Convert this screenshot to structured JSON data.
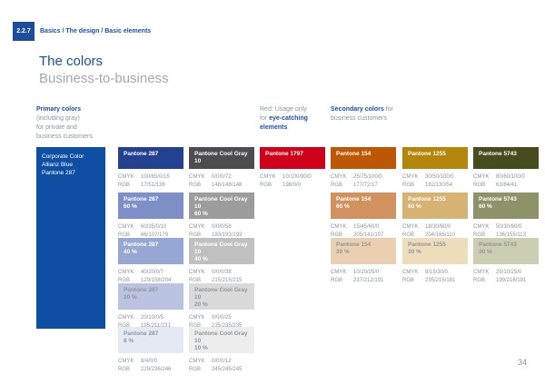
{
  "page": {
    "section_number": "2.2.7",
    "breadcrumb": "Basics / The design / Basic elements",
    "title": "The colors",
    "subtitle": "Business-to-business",
    "page_number": "34"
  },
  "colors": {
    "brand_blue": "#1d4e9c",
    "page_background": "#ffffff"
  },
  "labels": {
    "cmyk": "CMYK",
    "rgb": "RGB"
  },
  "primary_note": {
    "heading": "Primary colors",
    "line2": "(including gray)",
    "line3": "for private and",
    "line4": "business customers"
  },
  "red_note": {
    "line1": "Red: Usage only",
    "line2_prefix": "for ",
    "line2_em": "eye-catching",
    "line3_em": "elements"
  },
  "secondary_note": {
    "em": "Secondary colors",
    "line1_suffix": " for",
    "line2": "business customers"
  },
  "corporate_swatch": {
    "line1": "Corporate Color",
    "line2": "Allianz Blue",
    "line3": "Pantone 287",
    "color": "#0e4fa3"
  },
  "columns": [
    {
      "id": "pantone-287",
      "swatches": [
        {
          "label": "Pantone 287",
          "tint": "",
          "cmyk": "100/65/0/15",
          "rgb": "17/51/136",
          "bg": "#24418f",
          "tone": "light"
        },
        {
          "label": "Pantone 287",
          "tint": "60 %",
          "cmyk": "60/35/0/10",
          "rgb": "66/107/179",
          "bg": "#7d8fc6",
          "tone": "light"
        },
        {
          "label": "Pantone 287",
          "tint": "40 %",
          "cmyk": "40/20/0/7",
          "rgb": "129/158/204",
          "bg": "#95a7d2",
          "tone": "light"
        },
        {
          "label": "Pantone 287",
          "tint": "20 %",
          "cmyk": "20/10/0/5",
          "rgb": "195/211/231",
          "bg": "#bac4e2",
          "tone": "muted"
        },
        {
          "label": "Pantone 287",
          "tint": "8 %",
          "cmyk": "8/4/0/0",
          "rgb": "229/236/246",
          "bg": "#e5e9f4",
          "tone": "muted"
        }
      ]
    },
    {
      "id": "pantone-cool-gray-10",
      "swatches": [
        {
          "label": "Pantone Cool Gray 10",
          "tint": "",
          "cmyk": "0/0/0/72",
          "rgb": "148/148/148",
          "bg": "#4d4d4f",
          "tone": "light"
        },
        {
          "label": "Pantone Cool Gray 10",
          "tint": "60 %",
          "cmyk": "0/0/0/58",
          "rgb": "193/193/193",
          "bg": "#9c9c9c",
          "tone": "light"
        },
        {
          "label": "Pantone Cool Gray 10",
          "tint": "40 %",
          "cmyk": "0/0/0/38",
          "rgb": "215/215/215",
          "bg": "#c0c0c0",
          "tone": "light"
        },
        {
          "label": "Pantone Cool Gray 10",
          "tint": "20 %",
          "cmyk": "0/0/0/25",
          "rgb": "235/235/235",
          "bg": "#dadada",
          "tone": "muted"
        },
        {
          "label": "Pantone Cool Gray 10",
          "tint": "10 %",
          "cmyk": "0/0/0/12",
          "rgb": "245/245/245",
          "bg": "#ededed",
          "tone": "muted"
        }
      ]
    },
    {
      "id": "pantone-1797",
      "swatches": [
        {
          "label": "Pantone 1797",
          "tint": "",
          "cmyk": "10/100/90/0",
          "rgb": "198/0/0",
          "bg": "#cf0019",
          "tone": "light"
        }
      ]
    },
    {
      "id": "pantone-154",
      "swatches": [
        {
          "label": "Pantone 154",
          "tint": "",
          "cmyk": "25/75/100/0",
          "rgb": "177/72/17",
          "bg": "#bc5703",
          "tone": "light"
        },
        {
          "label": "Pantone 154",
          "tint": "60 %",
          "cmyk": "15/45/60/0",
          "rgb": "205/141/107",
          "bg": "#d2925f",
          "tone": "light"
        },
        {
          "label": "Pantone 154",
          "tint": "30 %",
          "cmyk": "10/20/25/0",
          "rgb": "237/212/191",
          "bg": "#eacfb0",
          "tone": "muted"
        }
      ]
    },
    {
      "id": "pantone-1255",
      "swatches": [
        {
          "label": "Pantone 1255",
          "tint": "",
          "cmyk": "30/50/100/0",
          "rgb": "182/130/54",
          "bg": "#b3860b",
          "tone": "light"
        },
        {
          "label": "Pantone 1255",
          "tint": "60 %",
          "cmyk": "18/30/60/0",
          "rgb": "204/165/110",
          "bg": "#d6b273",
          "tone": "light"
        },
        {
          "label": "Pantone 1255",
          "tint": "30 %",
          "cmyk": "9/15/30/0",
          "rgb": "235/215/181",
          "bg": "#eeddbb",
          "tone": "muted"
        }
      ]
    },
    {
      "id": "pantone-5743",
      "swatches": [
        {
          "label": "Pantone 5743",
          "tint": "",
          "cmyk": "80/60/100/0",
          "rgb": "63/84/41",
          "bg": "#464c1e",
          "tone": "light"
        },
        {
          "label": "Pantone 5743",
          "tint": "60 %",
          "cmyk": "50/30/60/0",
          "rgb": "136/155/113",
          "bg": "#8d9268",
          "tone": "light"
        },
        {
          "label": "Pantone 5743",
          "tint": "30 %",
          "cmyk": "25/10/25/0",
          "rgb": "199/216/181",
          "bg": "#cccdb1",
          "tone": "muted"
        }
      ]
    }
  ]
}
